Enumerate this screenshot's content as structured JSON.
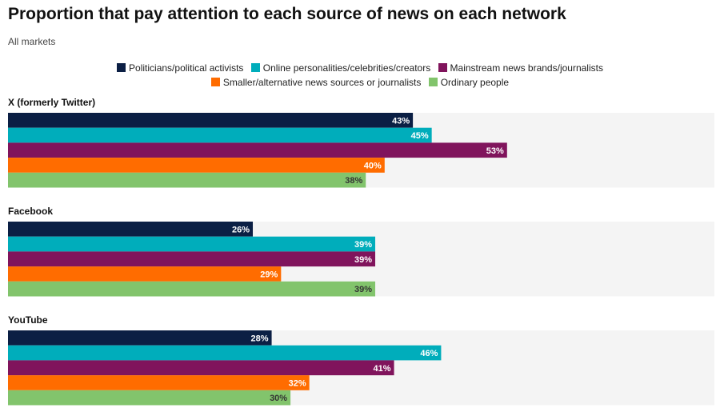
{
  "chart_data": {
    "type": "bar",
    "orientation": "horizontal",
    "title": "Proportion that pay attention to each source of news on each network",
    "subtitle": "All markets",
    "xlim": [
      0,
      100
    ],
    "value_suffix": "%",
    "series": [
      {
        "name": "Politicians/political activists",
        "color": "#0b1f44",
        "label_color": "#ffffff"
      },
      {
        "name": "Online personalities/celebrities/creators",
        "color": "#00adbb",
        "label_color": "#ffffff"
      },
      {
        "name": "Mainstream news brands/journalists",
        "color": "#80145c",
        "label_color": "#ffffff"
      },
      {
        "name": "Smaller/alternative news sources or journalists",
        "color": "#ff6c00",
        "label_color": "#ffffff"
      },
      {
        "name": "Ordinary people",
        "color": "#82c46c",
        "label_color": "#333333"
      }
    ],
    "panels": [
      {
        "name": "X (formerly Twitter)",
        "values": [
          43,
          45,
          53,
          40,
          38
        ]
      },
      {
        "name": "Facebook",
        "values": [
          26,
          39,
          39,
          29,
          39
        ]
      },
      {
        "name": "YouTube",
        "values": [
          28,
          46,
          41,
          32,
          30
        ]
      }
    ]
  }
}
